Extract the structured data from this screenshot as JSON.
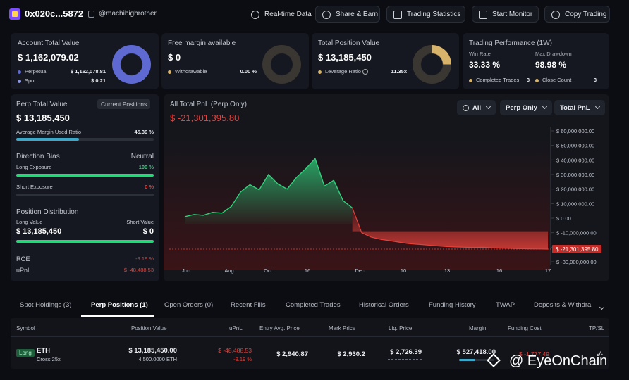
{
  "header": {
    "address": "0x020c...5872",
    "handle": "@machibigbrother",
    "buttons": {
      "realtime": "Real-time Data",
      "share": "Share & Earn",
      "stats": "Trading Statistics",
      "monitor": "Start Monitor",
      "copy": "Copy Trading"
    }
  },
  "account": {
    "title": "Account Total Value",
    "value": "$ 1,162,079.02",
    "perpetual_label": "Perpetual",
    "perpetual_value": "$ 1,162,078.81",
    "spot_label": "Spot",
    "spot_value": "$ 0.21"
  },
  "margin": {
    "title": "Free margin available",
    "value": "$ 0",
    "withdrawable_label": "Withdrawable",
    "withdrawable_value": "0.00 %"
  },
  "position": {
    "title": "Total Position Value",
    "value": "$ 13,185,450",
    "leverage_label": "Leverage Ratio",
    "leverage_value": "11.35x"
  },
  "performance": {
    "title": "Trading Performance (1W)",
    "win_rate_label": "Win Rate",
    "win_rate": "33.33 %",
    "drawdown_label": "Max Drawdown",
    "drawdown": "98.98 %",
    "completed_label": "Completed Trades",
    "completed": "3",
    "close_label": "Close Count",
    "close": "3"
  },
  "perp_panel": {
    "title": "Perp Total Value",
    "badge": "Current Positions",
    "value": "$ 13,185,450",
    "avg_margin_label": "Average Margin Used Ratio",
    "avg_margin_value": "45.39 %",
    "avg_margin_pct": 45.39,
    "direction_label": "Direction Bias",
    "direction_value": "Neutral",
    "long_label": "Long Exposure",
    "long_value": "100 %",
    "long_pct": 100,
    "short_label": "Short Exposure",
    "short_value": "0 %",
    "short_pct": 0,
    "distribution_label": "Position Distribution",
    "long_value_label": "Long Value",
    "short_value_label": "Short Value",
    "long_amount": "$ 13,185,450",
    "short_amount": "$ 0",
    "roe_label": "ROE",
    "roe_value": "-9.19 %",
    "upnl_label": "uPnL",
    "upnl_value": "$ -48,488.53"
  },
  "pnl_chart": {
    "title": "All Total PnL (Perp Only)",
    "value": "$ -21,301,395.80",
    "filters": {
      "range": "All",
      "mode": "Perp Only",
      "metric": "Total PnL"
    }
  },
  "chart_data": {
    "type": "area",
    "title": "All Total PnL (Perp Only)",
    "x_ticks": [
      "Jun",
      "Aug",
      "Oct",
      "16",
      "Dec",
      "10",
      "13",
      "16",
      "17"
    ],
    "y_ticks": [
      "$ 60,000,000.00",
      "$ 50,000,000.00",
      "$ 40,000,000.00",
      "$ 30,000,000.00",
      "$ 20,000,000.00",
      "$ 10,000,000.00",
      "$ 0.00",
      "$ -10,000,000.00",
      "$ -20,000,000.00",
      "$ -30,000,000.00"
    ],
    "ylim": [
      -30000000,
      60000000
    ],
    "current_label": "$ -21,301,395.80",
    "current_value": -21301395.8,
    "values": [
      1000000,
      2500000,
      2000000,
      4000000,
      3500000,
      8000000,
      18000000,
      23000000,
      19500000,
      30000000,
      23500000,
      20000000,
      28000000,
      34000000,
      41000000,
      22000000,
      26000000,
      12000000,
      7000000,
      -10000000,
      -13000000,
      -14500000,
      -15500000,
      -16500000,
      -17500000,
      -18000000,
      -18500000,
      -19000000,
      -19500000,
      -19800000,
      -20000000,
      -20200000,
      -20000000,
      -20400000,
      -20600000,
      -20800000,
      -21000000,
      -21100000,
      -21200000,
      -21301395.8
    ]
  },
  "tabs": [
    "Spot Holdings (3)",
    "Perp Positions (1)",
    "Open Orders (0)",
    "Recent Fills",
    "Completed Trades",
    "Historical Orders",
    "Funding History",
    "TWAP",
    "Deposits & Withdra"
  ],
  "table": {
    "headers": [
      "Symbol",
      "Position Value",
      "uPnL",
      "Entry Avg. Price",
      "Mark Price",
      "Liq. Price",
      "Margin",
      "Funding Cost",
      "TP/SL"
    ],
    "row": {
      "side": "Long",
      "symbol": "ETH",
      "leverage": "Cross 25x",
      "position_value": "$ 13,185,450.00",
      "position_size": "4,500.0000 ETH",
      "upnl": "$ -48,488.53",
      "roe": "-9.19 %",
      "entry": "$ 2,940.87",
      "mark": "$ 2,930.2",
      "liq": "$ 2,726.39",
      "margin": "$ 527,418.00",
      "funding": "$ -1,777.49",
      "tpsl": "-/-"
    }
  },
  "watermark": "@ EyeOnChain",
  "colors": {
    "accent_blue": "#5e6ad2",
    "gold": "#d8b46a",
    "green": "#2fd17b",
    "red": "#e5413b"
  }
}
